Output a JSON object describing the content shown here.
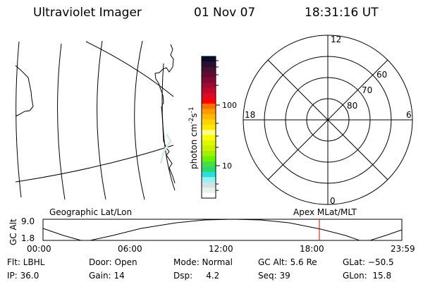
{
  "header": {
    "instrument": "Ultraviolet Imager",
    "date": "01 Nov 07",
    "time": "18:31:16 UT"
  },
  "colorbar": {
    "label_main": "photon cm",
    "label_exp1": "-2",
    "label_s": "s",
    "label_exp2": "-1",
    "ticks": [
      "100",
      "10"
    ],
    "scale": "log",
    "colors": [
      "#0a0a30",
      "#2a0f2e",
      "#480f32",
      "#640a32",
      "#820a32",
      "#a00a30",
      "#be0a30",
      "#dc0a28",
      "#ff0000",
      "#ff6e00",
      "#ff9a00",
      "#ffb800",
      "#ffd200",
      "#ffe800",
      "#ffff80",
      "#f8ff00",
      "#e2f500",
      "#c6f200",
      "#a2f000",
      "#6ef000",
      "#44e040",
      "#28d870",
      "#28e0d8",
      "#96f0f4",
      "#d2e2e2",
      "#e8f2ec",
      "#ffffff"
    ]
  },
  "polar": {
    "mlt_labels": {
      "top": "12",
      "bottom": "0",
      "left": "18",
      "right": "6"
    },
    "lat_labels": [
      "60",
      "70",
      "80"
    ]
  },
  "timeline": {
    "left_label": "Geographic Lat/Lon",
    "right_label": "Apex MLat/MLT",
    "y_axis_label": "GC Alt",
    "y_ticks": [
      "9.0",
      "1.8"
    ],
    "x_ticks": [
      "00:00",
      "06:00",
      "12:00",
      "18:00",
      "23:59"
    ],
    "current_time_marker": "18:31",
    "marker_color": "#e00000"
  },
  "status": {
    "row1": [
      "Flt: LBHL",
      "Door: Open",
      "Mode: Normal",
      "GC Alt: 5.6 Re",
      "GLat: −50.5"
    ],
    "row2": [
      "IP: 36.0",
      "Gain: 14",
      "Dsp:     4.2",
      "Seq: 39",
      "GLon:  15.8"
    ]
  }
}
